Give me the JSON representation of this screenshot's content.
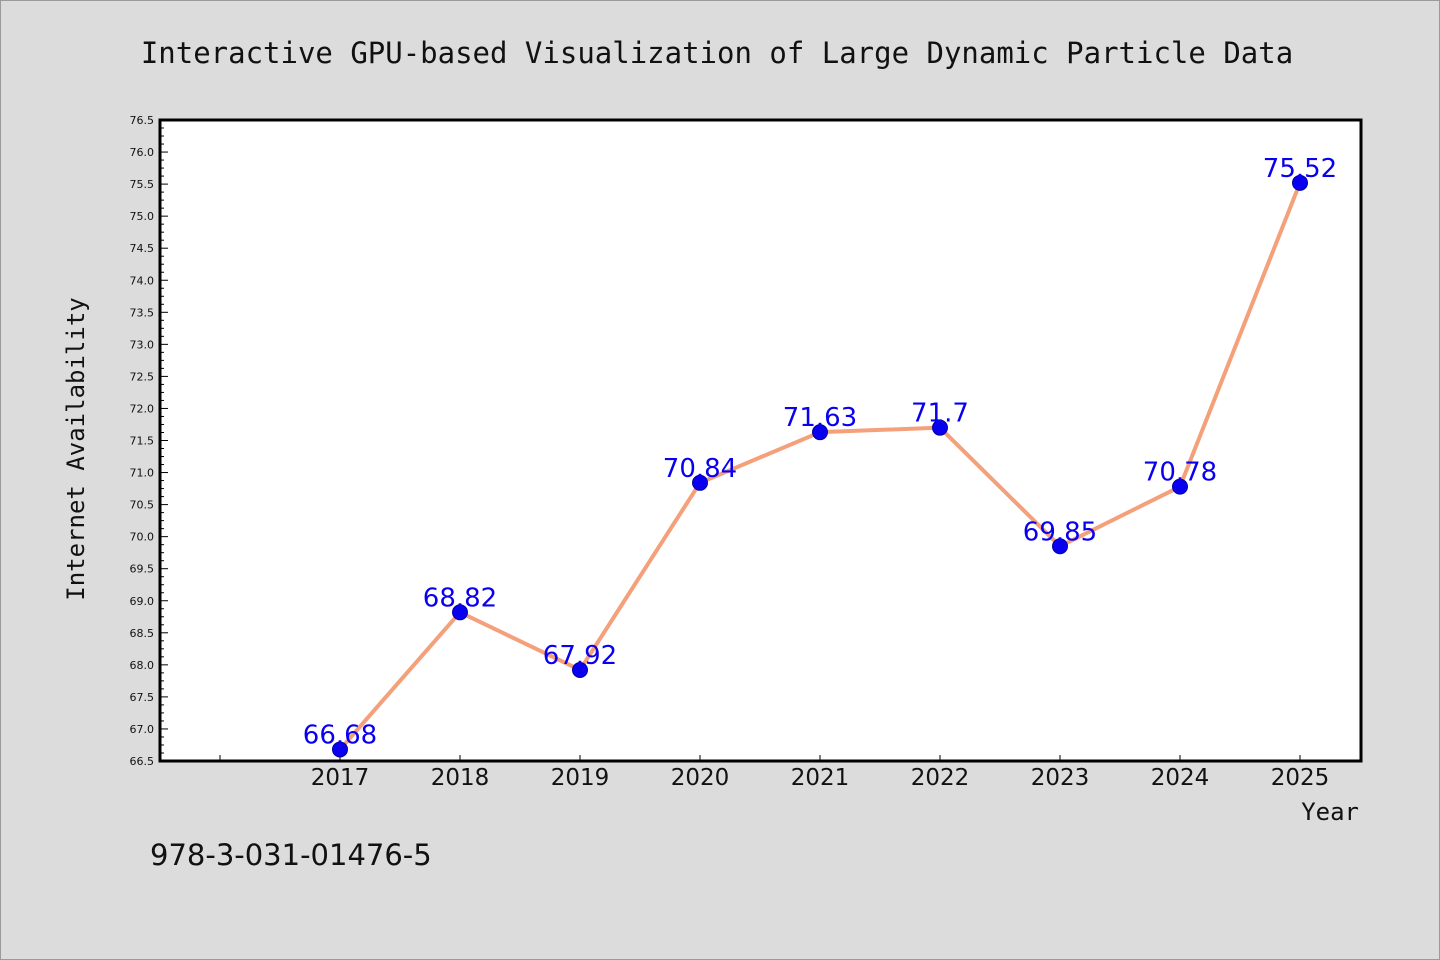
{
  "title": "Interactive GPU-based Visualization of Large Dynamic Particle Data",
  "footer": "978-3-031-01476-5",
  "colors": {
    "background": "#dcdcdc",
    "plot_background": "#ffffff",
    "line": "#f4a07a",
    "marker": "#0a00f0",
    "data_label": "#0a00f0"
  },
  "chart_data": {
    "type": "line",
    "xlabel": "Year",
    "ylabel": "Internet Availability",
    "categories": [
      "2017",
      "2018",
      "2019",
      "2020",
      "2021",
      "2022",
      "2023",
      "2024",
      "2025"
    ],
    "series": [
      {
        "values": [
          66.68,
          68.82,
          67.92,
          70.84,
          71.63,
          71.7,
          69.85,
          70.78,
          75.52
        ]
      }
    ],
    "data_labels": [
      "66.68",
      "68.82",
      "67.92",
      "70.84",
      "71.63",
      "71.7",
      "69.85",
      "70.78",
      "75.52"
    ],
    "ylim": [
      66.5,
      76.5
    ],
    "ytick_step": 0.5,
    "grid": false,
    "legend": "none"
  }
}
